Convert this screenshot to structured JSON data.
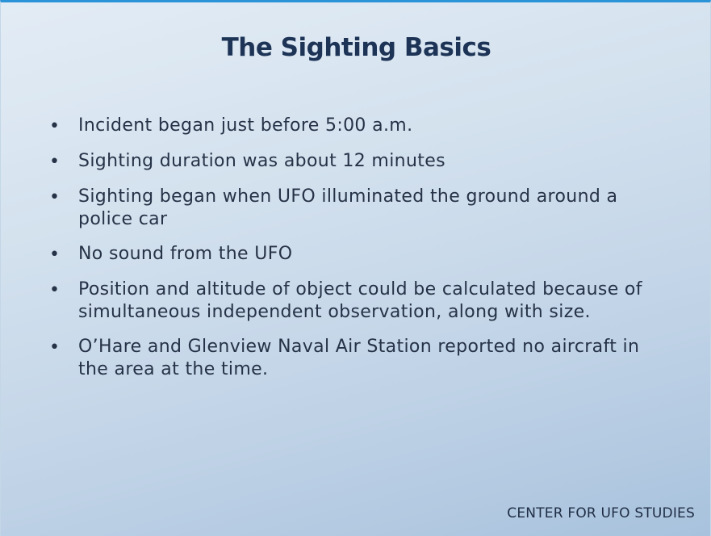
{
  "slide": {
    "title": "The Sighting Basics",
    "bullets": [
      {
        "text": "Incident began just before 5:00 a.m."
      },
      {
        "text": "Sighting duration was about 12 minutes"
      },
      {
        "text": "Sighting began when UFO illuminated the ground around a police car"
      },
      {
        "text": "No sound from the UFO"
      },
      {
        "text": "Position and altitude of object could be calculated because of simultaneous independent observation, along with size."
      },
      {
        "text": "O’Hare and Glenview Naval Air Station reported no aircraft in the area at the time."
      }
    ],
    "bullet_glyph": "•",
    "footer": "CENTER FOR UFO STUDIES"
  },
  "colors": {
    "accent_bar": "#2b93d8",
    "title": "#1d3457",
    "text": "#263247"
  }
}
